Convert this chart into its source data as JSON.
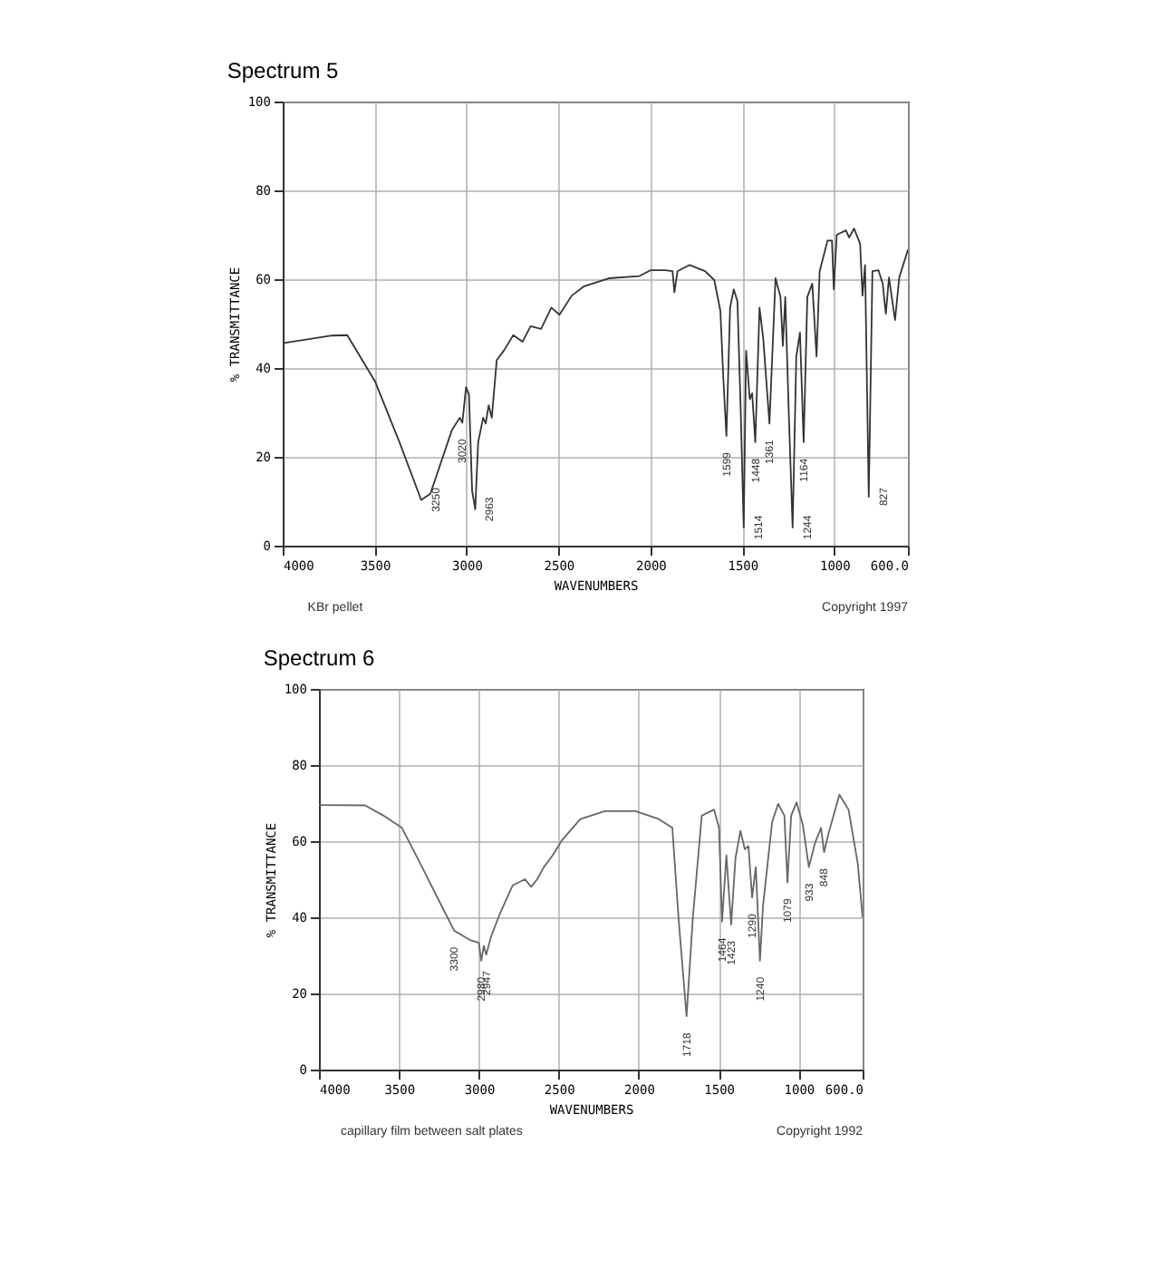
{
  "chart_data": [
    {
      "type": "line",
      "title": "Spectrum 5",
      "xlabel": "WAVENUMBERS",
      "ylabel": "% TRANSMITTANCE",
      "xlim": [
        4000,
        600
      ],
      "xticks": [
        4000,
        3500,
        3000,
        2500,
        2000,
        1500,
        1000,
        {
          "value": 600,
          "label": "600.0"
        }
      ],
      "ylim": [
        0,
        100
      ],
      "yticks": [
        0,
        20,
        40,
        60,
        80,
        100
      ],
      "grid": true,
      "series": [
        {
          "color": "#333333",
          "x": [
            4000,
            3732,
            3649,
            3498,
            3365,
            3247,
            3197,
            3080,
            3037,
            3023,
            3003,
            2987,
            2970,
            2953,
            2937,
            2910,
            2896,
            2880,
            2863,
            2836,
            2796,
            2746,
            2696,
            2652,
            2595,
            2539,
            2495,
            2428,
            2361,
            2227,
            2060,
            2000,
            1920,
            1880,
            1870,
            1853,
            1787,
            1703,
            1653,
            1620,
            1603,
            1587,
            1567,
            1547,
            1527,
            1510,
            1493,
            1480,
            1460,
            1447,
            1430,
            1407,
            1387,
            1353,
            1320,
            1293,
            1280,
            1267,
            1247,
            1227,
            1207,
            1187,
            1167,
            1147,
            1120,
            1097,
            1080,
            1037,
            1013,
            1003,
            987,
            937,
            920,
            893,
            860,
            847,
            833,
            813,
            793,
            760,
            737,
            720,
            703,
            670,
            647,
            620,
            600
          ],
          "values": [
            45.6,
            47.3,
            47.4,
            37,
            23.3,
            10.3,
            11.7,
            26,
            28.8,
            27.7,
            35.7,
            34,
            12.4,
            8.2,
            23.3,
            28.8,
            27.5,
            31.6,
            28.8,
            41.8,
            44,
            47.4,
            45.9,
            49.4,
            48.8,
            53.6,
            52,
            56.3,
            58.4,
            60.2,
            60.7,
            62,
            62,
            61.8,
            57,
            61.8,
            63.2,
            61.8,
            59.8,
            52.9,
            37,
            24.7,
            53.6,
            57.7,
            55,
            31.6,
            4.1,
            43.9,
            33,
            34.3,
            23.3,
            53.6,
            46.7,
            27.5,
            60.2,
            56,
            45,
            56,
            28.8,
            4.1,
            42.6,
            48,
            23.3,
            56,
            59,
            42.6,
            61.8,
            68.7,
            68.7,
            57.7,
            70,
            71,
            69.4,
            71.4,
            68,
            56.3,
            63.2,
            11,
            61.8,
            62,
            59,
            52.2,
            60.4,
            50.8,
            60.4,
            64,
            66.6
          ]
        }
      ],
      "annotations": [
        "KBr pellet",
        "Copyright 1997",
        {
          "text": "3250",
          "x": 3247,
          "y": 10.3
        },
        {
          "text": "3020",
          "x": 3023,
          "y": 27.7
        },
        {
          "text": "2963",
          "x": 2953,
          "y": 8.2
        },
        {
          "text": "1599",
          "x": 1587,
          "y": 24.7
        },
        {
          "text": "1514",
          "x": 1493,
          "y": 4.1
        },
        {
          "text": "1448",
          "x": 1430,
          "y": 23.3
        },
        {
          "text": "1361",
          "x": 1353,
          "y": 27.5
        },
        {
          "text": "1244",
          "x": 1227,
          "y": 4.1
        },
        {
          "text": "1164",
          "x": 1167,
          "y": 23.3
        },
        {
          "text": "827",
          "x": 813,
          "y": 11
        }
      ]
    },
    {
      "type": "line",
      "title": "Spectrum 6",
      "xlabel": "WAVENUMBERS",
      "ylabel": "% TRANSMITTANCE",
      "xlim": [
        4000,
        600
      ],
      "xticks": [
        4000,
        3500,
        3000,
        2500,
        2000,
        1500,
        1000,
        {
          "value": 600,
          "label": "600.0"
        }
      ],
      "ylim": [
        0,
        100
      ],
      "yticks": [
        0,
        20,
        40,
        60,
        80,
        100
      ],
      "grid": true,
      "series": [
        {
          "color": "#666666",
          "x": [
            4000,
            3712,
            3596,
            3481,
            3365,
            3250,
            3154,
            3058,
            3000,
            2985,
            2969,
            2954,
            2923,
            2865,
            2788,
            2712,
            2673,
            2635,
            2596,
            2538,
            2481,
            2365,
            2212,
            2020,
            1874,
            1790,
            1751,
            1701,
            1662,
            1606,
            1529,
            1498,
            1479,
            1452,
            1422,
            1395,
            1364,
            1337,
            1314,
            1291,
            1268,
            1242,
            1223,
            1166,
            1128,
            1089,
            1070,
            1047,
            1013,
            974,
            936,
            898,
            860,
            841,
            814,
            745,
            688,
            630,
            600
          ],
          "values": [
            69.5,
            69.4,
            66.7,
            63.5,
            54,
            44.4,
            36.5,
            34.1,
            33.3,
            28.6,
            32.5,
            30.2,
            35,
            41.3,
            48.4,
            50,
            48,
            50,
            53,
            56.3,
            60.2,
            65.8,
            67.9,
            67.9,
            65.8,
            63.5,
            39.7,
            14,
            39.7,
            66.7,
            68.3,
            63.5,
            38.9,
            56.3,
            38.1,
            55.6,
            62.7,
            57.9,
            58.7,
            45.2,
            53.2,
            28.6,
            42.9,
            65,
            69.8,
            66.7,
            49.2,
            66.7,
            70.2,
            64.3,
            53.2,
            59.5,
            63.5,
            57.1,
            61.9,
            72.2,
            68.3,
            54,
            40
          ]
        }
      ],
      "annotations": [
        "capillary film between salt plates",
        "Copyright 1992",
        {
          "text": "3300",
          "x": 3154,
          "y": 36.5
        },
        {
          "text": "2980",
          "x": 2985,
          "y": 28.6
        },
        {
          "text": "2947",
          "x": 2954,
          "y": 30.2
        },
        {
          "text": "1718",
          "x": 1701,
          "y": 14
        },
        {
          "text": "1464",
          "x": 1479,
          "y": 38.9
        },
        {
          "text": "1423",
          "x": 1422,
          "y": 38.1
        },
        {
          "text": "1290",
          "x": 1291,
          "y": 45.2
        },
        {
          "text": "1240",
          "x": 1242,
          "y": 28.6
        },
        {
          "text": "1079",
          "x": 1070,
          "y": 49.2
        },
        {
          "text": "933",
          "x": 936,
          "y": 53.2
        },
        {
          "text": "848",
          "x": 841,
          "y": 57.1
        }
      ]
    }
  ]
}
